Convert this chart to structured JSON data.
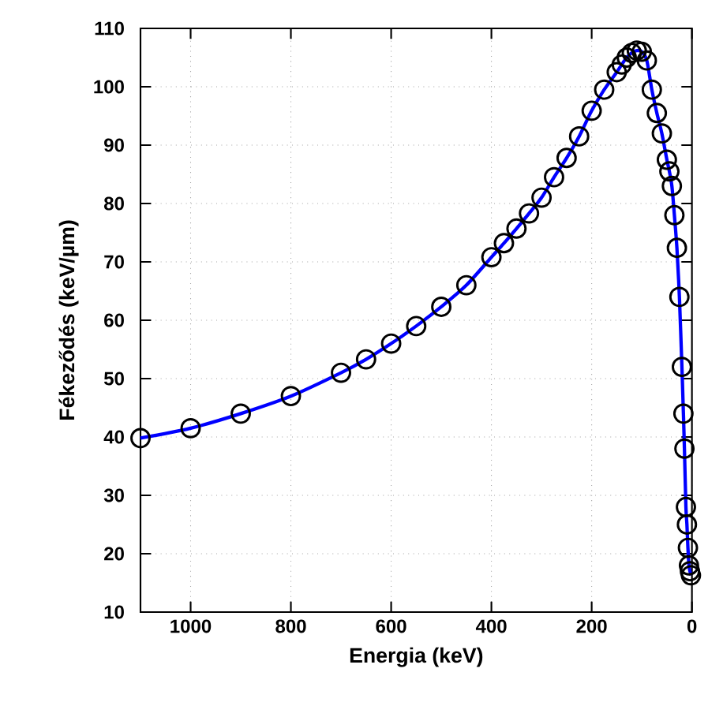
{
  "chart_data": {
    "type": "scatter",
    "xlabel": "Energia (keV)",
    "ylabel": "Fékeződés (keV/µm)",
    "x": [
      1100,
      1000,
      900,
      800,
      700,
      650,
      600,
      550,
      500,
      450,
      400,
      375,
      350,
      325,
      300,
      275,
      250,
      225,
      200,
      175,
      150,
      140,
      130,
      120,
      110,
      100,
      90,
      80,
      70,
      60,
      50,
      45,
      40,
      35,
      30,
      25,
      20,
      17,
      15,
      12,
      10,
      8,
      6,
      4,
      2
    ],
    "series": [
      {
        "color": "#000000",
        "marker": "circle",
        "values": [
          39.8,
          41.5,
          44,
          47,
          51,
          53.3,
          56,
          59,
          62.3,
          66,
          70.8,
          73.2,
          75.7,
          78.3,
          81,
          84.5,
          87.8,
          91.5,
          95.9,
          99.5,
          102.5,
          103.8,
          105,
          105.8,
          106.2,
          106,
          104.5,
          99.5,
          95.5,
          92,
          87.5,
          85.5,
          83,
          78,
          72.4,
          64,
          52,
          44,
          38,
          28,
          25,
          21,
          18,
          17,
          16.3
        ]
      },
      {
        "type": "line",
        "color": "#0000ff",
        "line_style": "solid",
        "values": [
          39.8,
          41.5,
          44,
          47,
          51,
          53.3,
          56,
          59,
          62.3,
          66,
          70.8,
          73.2,
          75.7,
          78.3,
          81,
          84.5,
          87.8,
          91.5,
          95.9,
          99.5,
          102.5,
          103.8,
          105,
          105.8,
          106.2,
          106,
          104.5,
          99.5,
          95.5,
          92,
          87.5,
          85.5,
          83,
          78,
          72.4,
          64,
          52,
          44,
          38,
          28,
          25,
          21,
          18,
          17,
          16.3
        ]
      }
    ],
    "xlim": [
      1100,
      0
    ],
    "xticks": [
      1000,
      800,
      600,
      400,
      200,
      0
    ],
    "ylim": [
      10,
      110
    ],
    "yticks": [
      10,
      20,
      30,
      40,
      50,
      60,
      70,
      80,
      90,
      100,
      110
    ],
    "grid": true
  }
}
